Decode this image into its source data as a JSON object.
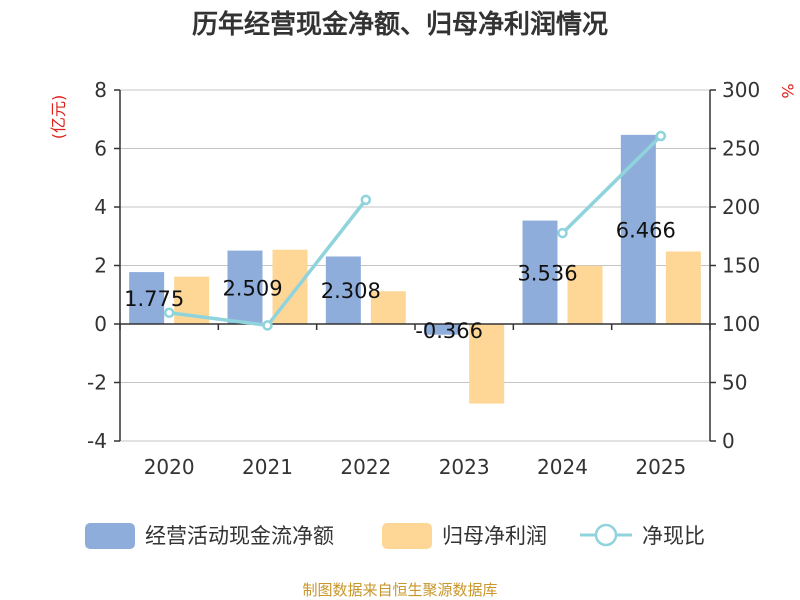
{
  "chart_data": {
    "type": "bar",
    "title": "历年经营现金净额、归母净利润情况",
    "categories": [
      "2020",
      "2021",
      "2022",
      "2023",
      "2024",
      "2025"
    ],
    "y_left": {
      "unit": "(亿元)",
      "min": -4,
      "max": 8,
      "ticks": [
        "-4",
        "-2",
        "0",
        "2",
        "4",
        "6",
        "8"
      ]
    },
    "y_right": {
      "unit": "%",
      "min": 0,
      "max": 300,
      "ticks": [
        "0",
        "50",
        "100",
        "150",
        "200",
        "250",
        "300"
      ]
    },
    "series": [
      {
        "name": "经营活动现金流净额",
        "kind": "bar",
        "axis": "left",
        "color": "#8eaddb",
        "values": [
          1.775,
          2.509,
          2.308,
          -0.366,
          3.536,
          6.466
        ],
        "labels": [
          "1.775",
          "2.509",
          "2.308",
          "-0.366",
          "3.536",
          "6.466"
        ]
      },
      {
        "name": "归母净利润",
        "kind": "bar",
        "axis": "left",
        "color": "#fed797",
        "values": [
          1.62,
          2.54,
          1.12,
          -2.72,
          1.99,
          2.48
        ]
      },
      {
        "name": "净现比",
        "kind": "line",
        "axis": "right",
        "color": "#8fd3dc",
        "values": [
          109.6,
          98.8,
          206.1,
          null,
          177.7,
          260.7
        ]
      }
    ],
    "grid": true,
    "legend_position": "bottom"
  },
  "footer": {
    "source": "制图数据来自恒生聚源数据库"
  }
}
